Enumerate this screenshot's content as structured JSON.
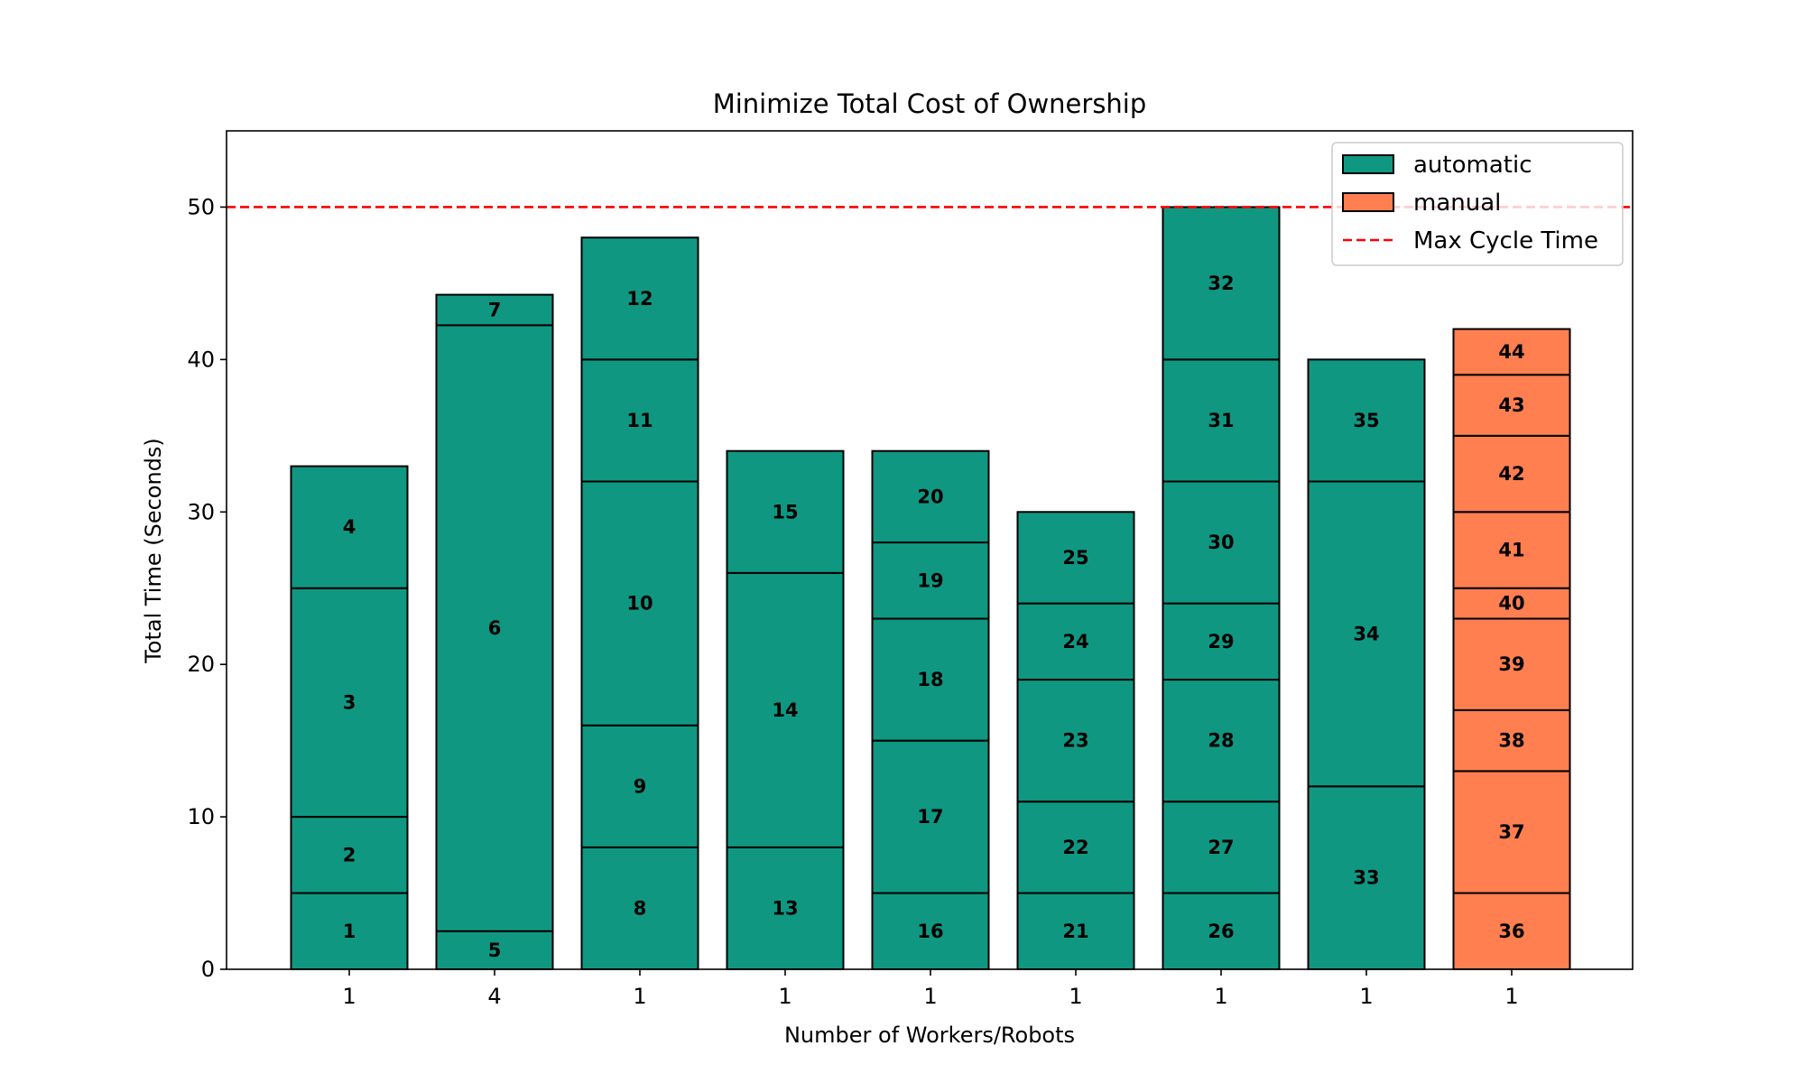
{
  "chart_data": {
    "type": "bar",
    "stacked": true,
    "title": "Minimize Total Cost of Ownership",
    "xlabel": "Number of Workers/Robots",
    "ylabel": "Total Time (Seconds)",
    "ylim": [
      0,
      55
    ],
    "yticks": [
      0,
      10,
      20,
      30,
      40,
      50
    ],
    "grid": false,
    "legend_position": "top-right",
    "colors": {
      "automatic": "#109781",
      "manual": "#FF7F50",
      "max_line": "#FF0000",
      "edge": "#000000"
    },
    "legend": [
      {
        "key": "automatic",
        "label": "automatic",
        "kind": "patch"
      },
      {
        "key": "manual",
        "label": "manual",
        "kind": "patch"
      },
      {
        "key": "max_line",
        "label": "Max Cycle Time",
        "kind": "dashed-line"
      }
    ],
    "max_cycle_time": 50,
    "categories": [
      "1",
      "4",
      "1",
      "1",
      "1",
      "1",
      "1",
      "1",
      "1"
    ],
    "stations": [
      {
        "tick": "1",
        "segments": [
          {
            "label": "1",
            "value": 5,
            "type": "automatic"
          },
          {
            "label": "2",
            "value": 5,
            "type": "automatic"
          },
          {
            "label": "3",
            "value": 15,
            "type": "automatic"
          },
          {
            "label": "4",
            "value": 8,
            "type": "automatic"
          }
        ]
      },
      {
        "tick": "4",
        "segments": [
          {
            "label": "5",
            "value": 2.5,
            "type": "automatic"
          },
          {
            "label": "6",
            "value": 39.75,
            "type": "automatic"
          },
          {
            "label": "7",
            "value": 2,
            "type": "automatic"
          }
        ]
      },
      {
        "tick": "1",
        "segments": [
          {
            "label": "8",
            "value": 8,
            "type": "automatic"
          },
          {
            "label": "9",
            "value": 8,
            "type": "automatic"
          },
          {
            "label": "10",
            "value": 16,
            "type": "automatic"
          },
          {
            "label": "11",
            "value": 8,
            "type": "automatic"
          },
          {
            "label": "12",
            "value": 8,
            "type": "automatic"
          }
        ]
      },
      {
        "tick": "1",
        "segments": [
          {
            "label": "13",
            "value": 8,
            "type": "automatic"
          },
          {
            "label": "14",
            "value": 18,
            "type": "automatic"
          },
          {
            "label": "15",
            "value": 8,
            "type": "automatic"
          }
        ]
      },
      {
        "tick": "1",
        "segments": [
          {
            "label": "16",
            "value": 5,
            "type": "automatic"
          },
          {
            "label": "17",
            "value": 10,
            "type": "automatic"
          },
          {
            "label": "18",
            "value": 8,
            "type": "automatic"
          },
          {
            "label": "19",
            "value": 5,
            "type": "automatic"
          },
          {
            "label": "20",
            "value": 6,
            "type": "automatic"
          }
        ]
      },
      {
        "tick": "1",
        "segments": [
          {
            "label": "21",
            "value": 5,
            "type": "automatic"
          },
          {
            "label": "22",
            "value": 6,
            "type": "automatic"
          },
          {
            "label": "23",
            "value": 8,
            "type": "automatic"
          },
          {
            "label": "24",
            "value": 5,
            "type": "automatic"
          },
          {
            "label": "25",
            "value": 6,
            "type": "automatic"
          }
        ]
      },
      {
        "tick": "1",
        "segments": [
          {
            "label": "26",
            "value": 5,
            "type": "automatic"
          },
          {
            "label": "27",
            "value": 6,
            "type": "automatic"
          },
          {
            "label": "28",
            "value": 8,
            "type": "automatic"
          },
          {
            "label": "29",
            "value": 5,
            "type": "automatic"
          },
          {
            "label": "30",
            "value": 8,
            "type": "automatic"
          },
          {
            "label": "31",
            "value": 8,
            "type": "automatic"
          },
          {
            "label": "32",
            "value": 10,
            "type": "automatic"
          }
        ]
      },
      {
        "tick": "1",
        "segments": [
          {
            "label": "33",
            "value": 12,
            "type": "automatic"
          },
          {
            "label": "34",
            "value": 20,
            "type": "automatic"
          },
          {
            "label": "35",
            "value": 8,
            "type": "automatic"
          }
        ]
      },
      {
        "tick": "1",
        "segments": [
          {
            "label": "36",
            "value": 5,
            "type": "manual"
          },
          {
            "label": "37",
            "value": 8,
            "type": "manual"
          },
          {
            "label": "38",
            "value": 4,
            "type": "manual"
          },
          {
            "label": "39",
            "value": 6,
            "type": "manual"
          },
          {
            "label": "40",
            "value": 2,
            "type": "manual"
          },
          {
            "label": "41",
            "value": 5,
            "type": "manual"
          },
          {
            "label": "42",
            "value": 5,
            "type": "manual"
          },
          {
            "label": "43",
            "value": 4,
            "type": "manual"
          },
          {
            "label": "44",
            "value": 3,
            "type": "manual"
          }
        ]
      }
    ]
  }
}
